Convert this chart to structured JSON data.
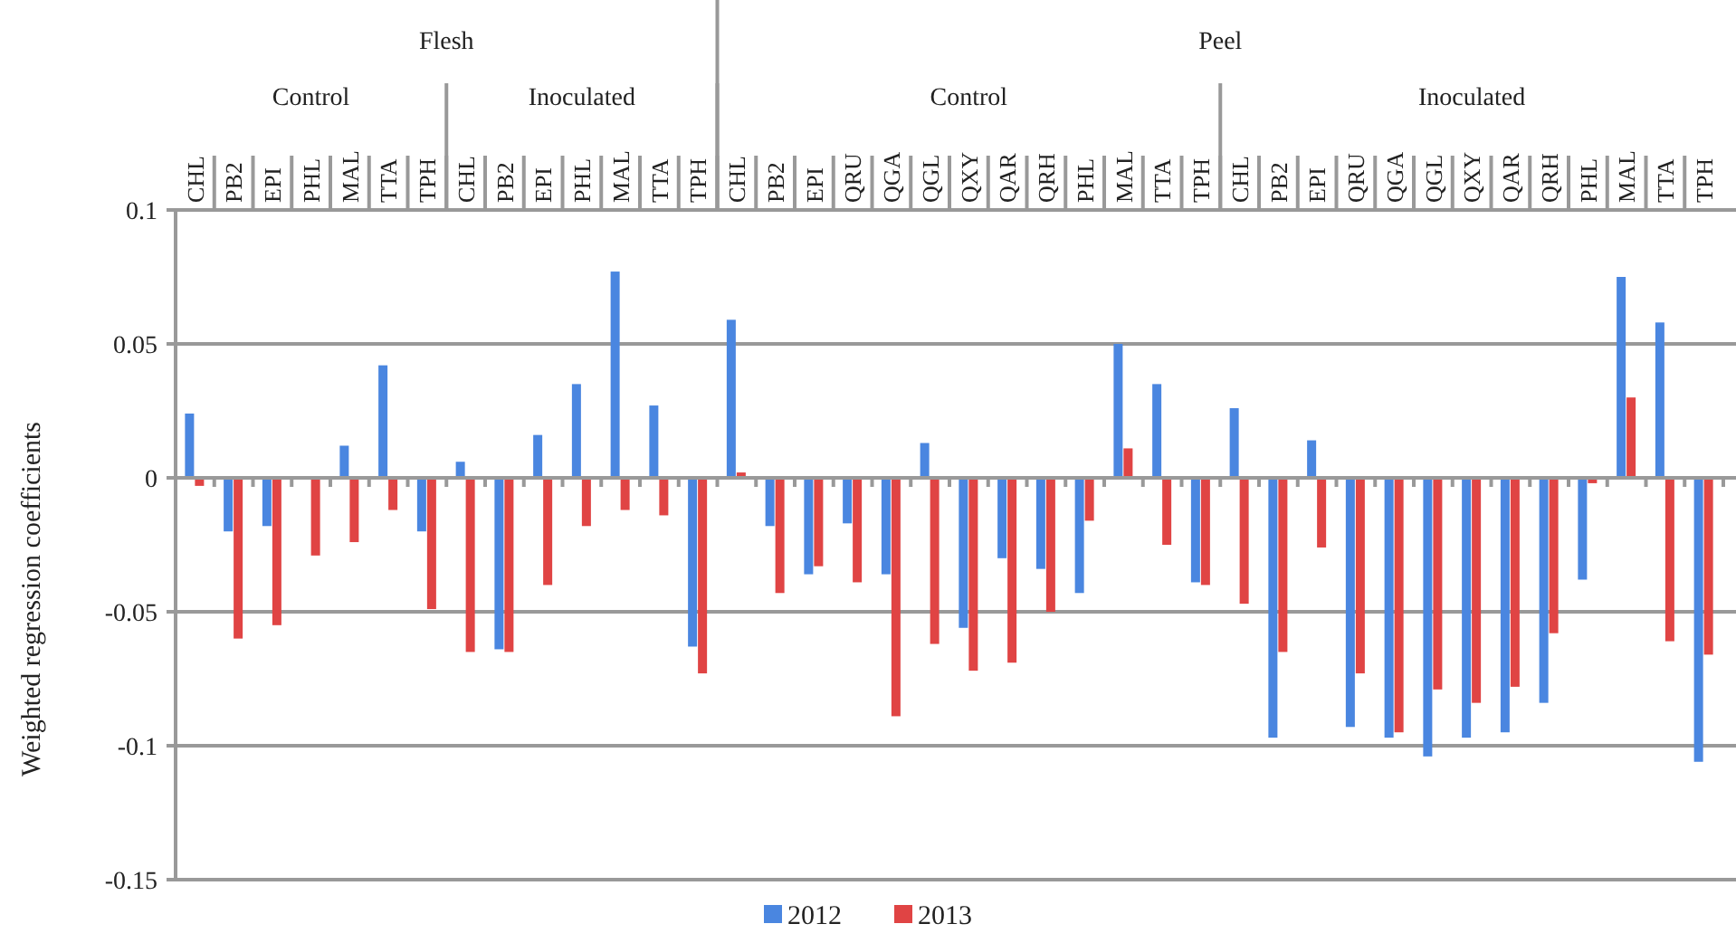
{
  "chart_data": {
    "type": "bar",
    "ylabel": "Weighted regression coefficients",
    "annotations": [
      "Flesh",
      "Control",
      "Inoculated",
      "Peel",
      "Control",
      "Inoculated"
    ],
    "categories": [
      "CHL",
      "PB2",
      "EPI",
      "PHL",
      "MAL",
      "TTA",
      "TPH",
      "CHL",
      "PB2",
      "EPI",
      "PHL",
      "MAL",
      "TTA",
      "TPH",
      "CHL",
      "PB2",
      "EPI",
      "QRU",
      "QGA",
      "QGL",
      "QXY",
      "QAR",
      "QRH",
      "PHL",
      "MAL",
      "TTA",
      "TPH",
      "CHL",
      "PB2",
      "EPI",
      "QRU",
      "QGA",
      "QGL",
      "QXY",
      "QAR",
      "QRH",
      "PHL",
      "MAL",
      "TTA",
      "TPH"
    ],
    "series": [
      {
        "name": "2012",
        "color": "#4a86e0",
        "values": [
          0.024,
          -0.02,
          -0.018,
          0,
          0.012,
          0.042,
          -0.02,
          0.006,
          -0.064,
          0.016,
          0.035,
          0.077,
          0.027,
          -0.063,
          0.059,
          -0.018,
          -0.036,
          -0.017,
          -0.036,
          0.013,
          -0.056,
          -0.03,
          -0.034,
          -0.043,
          0.05,
          0.035,
          -0.039,
          0.026,
          -0.097,
          0.014,
          -0.093,
          -0.097,
          -0.104,
          -0.097,
          -0.095,
          -0.084,
          -0.038,
          0.075,
          0.058,
          -0.106
        ]
      },
      {
        "name": "2013",
        "color": "#e04444",
        "values": [
          -0.003,
          -0.06,
          -0.055,
          -0.029,
          -0.024,
          -0.012,
          -0.049,
          -0.065,
          -0.065,
          -0.04,
          -0.018,
          -0.012,
          -0.014,
          -0.073,
          0.002,
          -0.043,
          -0.033,
          -0.039,
          -0.089,
          -0.062,
          -0.072,
          -0.069,
          -0.05,
          -0.016,
          0.011,
          -0.025,
          -0.04,
          -0.047,
          -0.065,
          -0.026,
          -0.073,
          -0.095,
          -0.079,
          -0.084,
          -0.078,
          -0.058,
          -0.002,
          0.03,
          -0.061,
          -0.066
        ]
      }
    ],
    "ylim": [
      -0.15,
      0.1
    ],
    "yticks": [
      0.1,
      0.05,
      0,
      -0.05,
      -0.1,
      -0.15
    ],
    "grid": "y",
    "legend": "bottom"
  }
}
